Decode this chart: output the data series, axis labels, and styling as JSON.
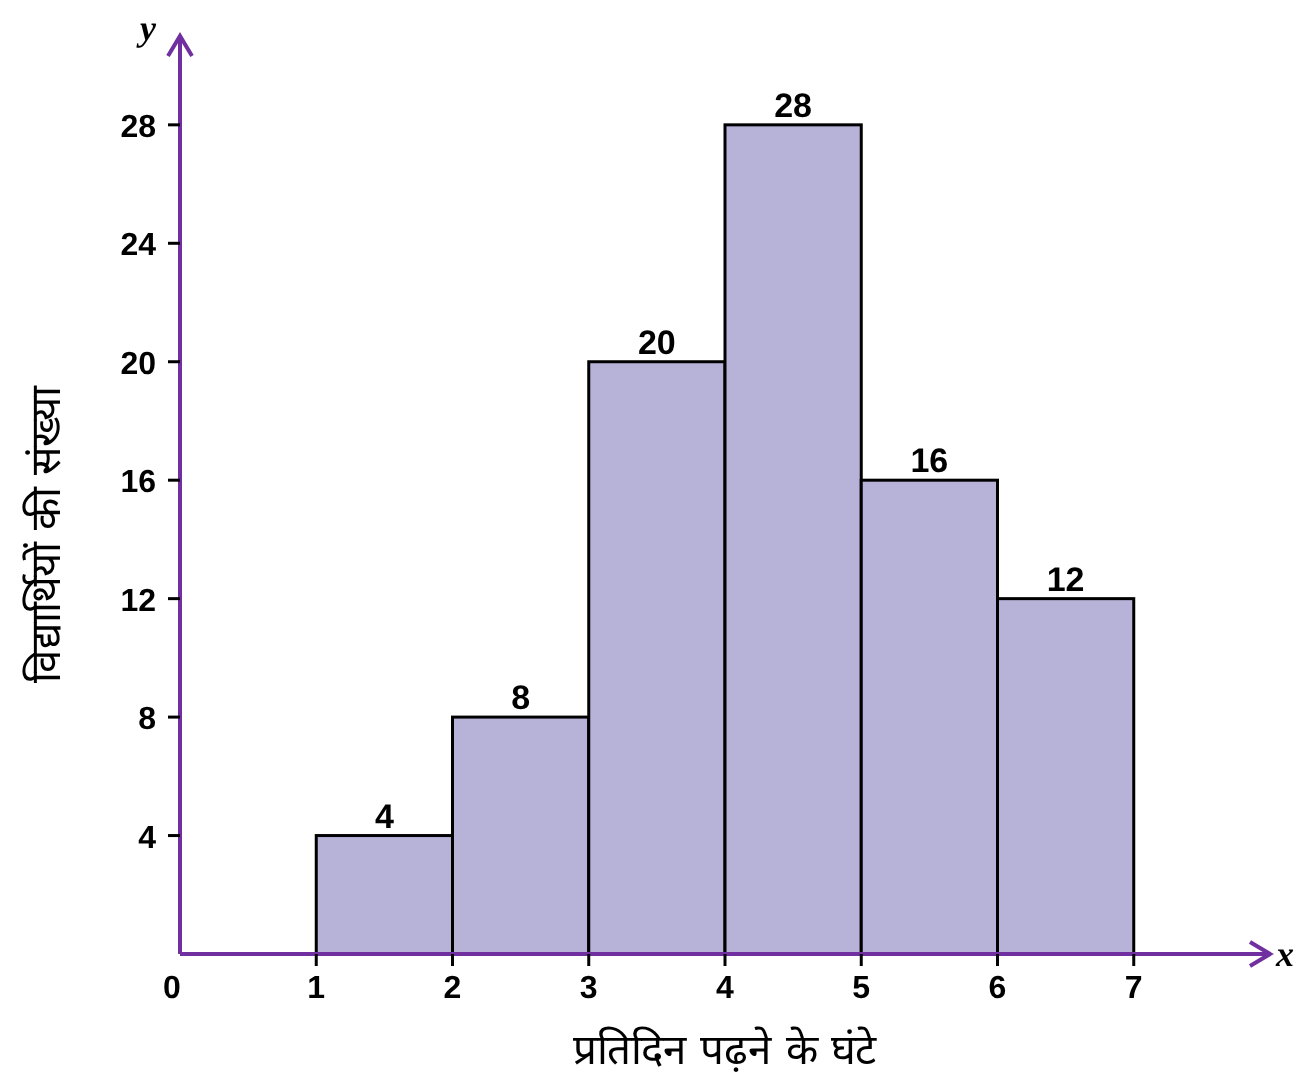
{
  "chart_data": {
    "type": "histogram",
    "bins": [
      1,
      2,
      3,
      4,
      5,
      6,
      7
    ],
    "values": [
      4,
      8,
      20,
      28,
      16,
      12
    ],
    "color": "#b7b2d8",
    "data_labels": true,
    "xlabel": "प्रतिदिन पढ़ने के घंटे",
    "ylabel": "विद्यार्थियों की संख्या",
    "xlim": [
      0,
      8
    ],
    "ylim": [
      0,
      31
    ],
    "xticks": [
      {
        "value": 0,
        "label": "0"
      },
      1,
      2,
      3,
      4,
      5,
      6,
      7
    ],
    "yticks": [
      4,
      8,
      12,
      16,
      20,
      24,
      28
    ],
    "annotations": [
      "x",
      "y"
    ]
  }
}
